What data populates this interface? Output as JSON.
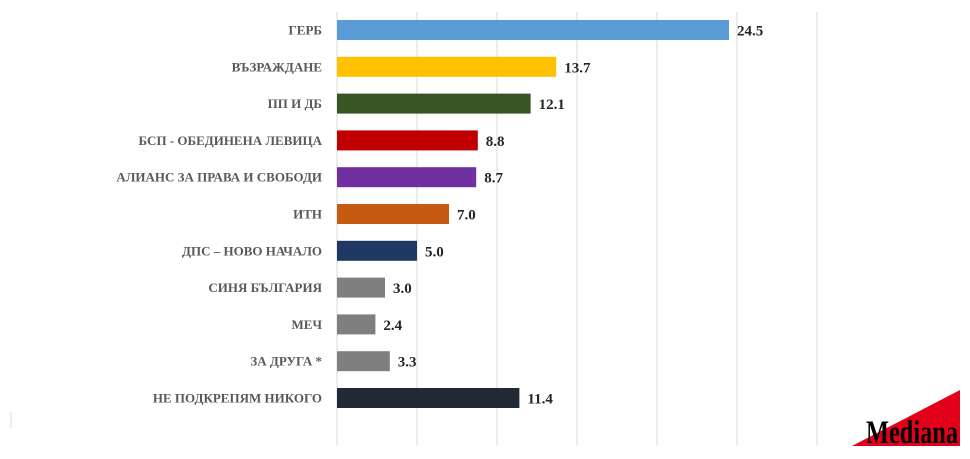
{
  "chart_data": {
    "type": "bar",
    "orientation": "horizontal",
    "title": "",
    "xlabel": "",
    "ylabel": "",
    "xlim": [
      0,
      30
    ],
    "grid": true,
    "categories": [
      "ГЕРБ",
      "ВЪЗРАЖДАНЕ",
      "ПП И ДБ",
      "БСП - ОБЕДИНЕНА ЛЕВИЦА",
      "АЛИАНС ЗА ПРАВА И СВОБОДИ",
      "ИТН",
      "ДПС – НОВО НАЧАЛО",
      "СИНЯ БЪЛГАРИЯ",
      "МЕЧ",
      "ЗА ДРУГА *",
      "НЕ ПОДКРЕПЯМ НИКОГО"
    ],
    "values": [
      24.5,
      13.7,
      12.1,
      8.8,
      8.7,
      7.0,
      5.0,
      3.0,
      2.4,
      3.3,
      11.4
    ],
    "value_labels": [
      "24.5",
      "13.7",
      "12.1",
      "8.8",
      "8.7",
      "7.0",
      "5.0",
      "3.0",
      "2.4",
      "3.3",
      "11.4"
    ],
    "colors": [
      "#5B9BD5",
      "#FFC000",
      "#375623",
      "#C00000",
      "#7030A0",
      "#C55A11",
      "#1F3864",
      "#7F7F7F",
      "#7F7F7F",
      "#7F7F7F",
      "#222A35"
    ]
  },
  "logo": {
    "text": "Mediana",
    "color": "#E2001A"
  }
}
